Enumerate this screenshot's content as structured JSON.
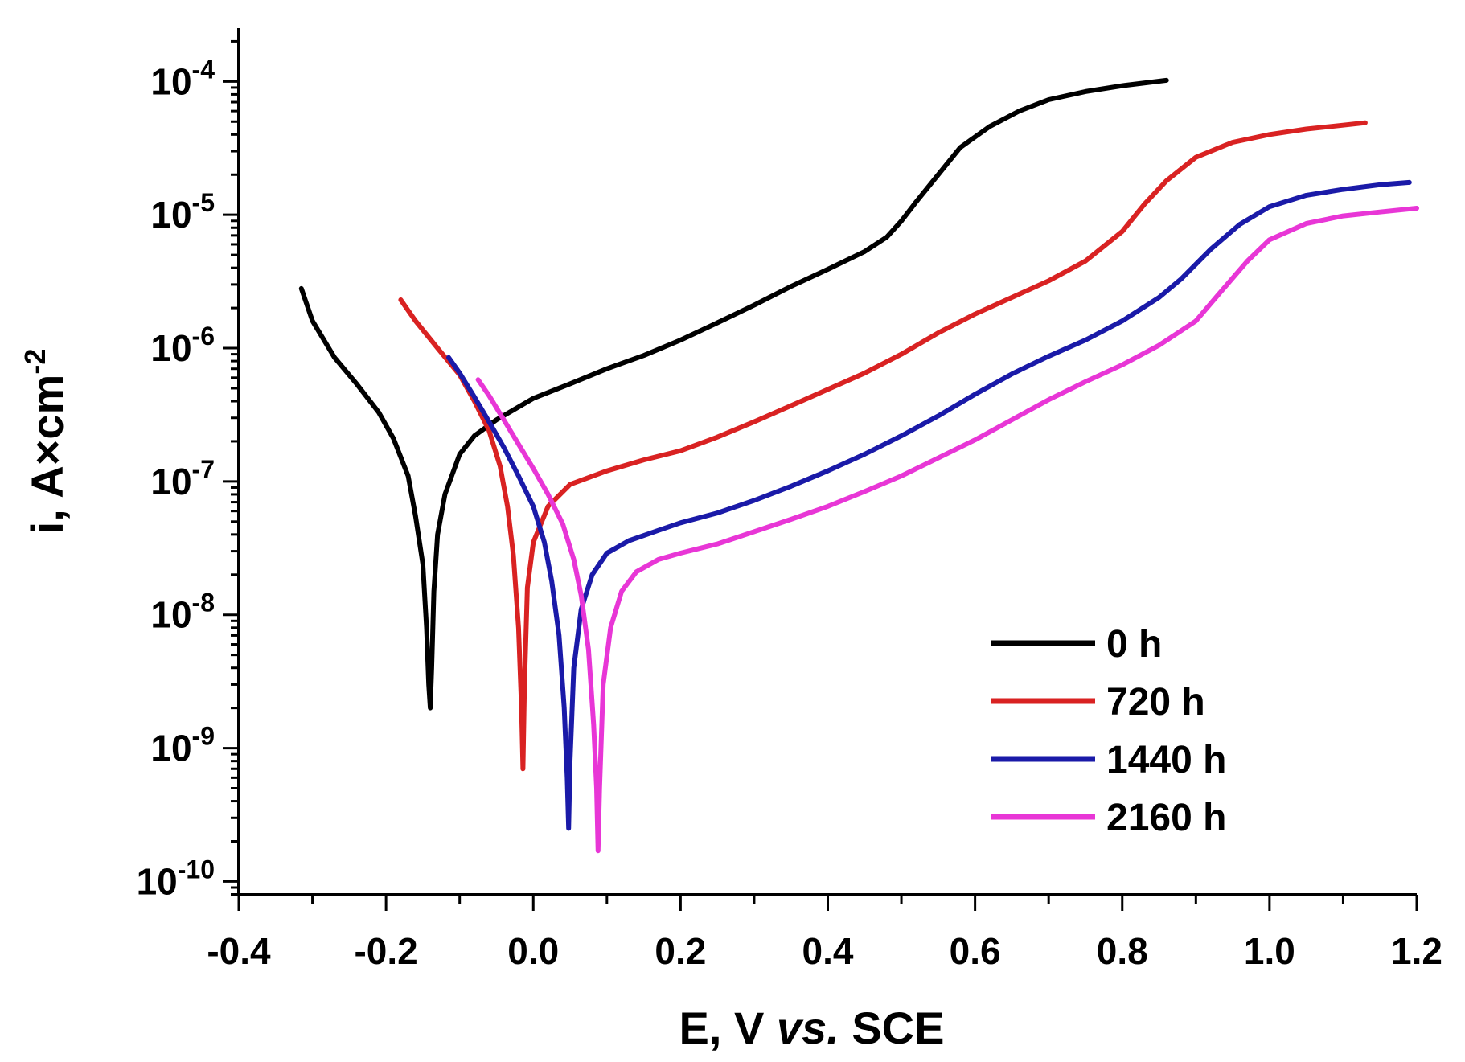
{
  "chart_data": {
    "type": "line",
    "title": "",
    "xlabel": {
      "pre": "E, V ",
      "italic": "vs.",
      "post": " SCE"
    },
    "ylabel": {
      "base": "i, A×cm",
      "sup": "-2"
    },
    "xlim": [
      -0.4,
      1.2
    ],
    "ylim_log10": [
      -10.1,
      -3.6
    ],
    "y_scale": "log",
    "x_ticks": [
      {
        "value": -0.4,
        "label": "-0.4"
      },
      {
        "value": -0.2,
        "label": "-0.2"
      },
      {
        "value": 0.0,
        "label": "0.0"
      },
      {
        "value": 0.2,
        "label": "0.2"
      },
      {
        "value": 0.4,
        "label": "0.4"
      },
      {
        "value": 0.6,
        "label": "0.6"
      },
      {
        "value": 0.8,
        "label": "0.8"
      },
      {
        "value": 1.0,
        "label": "1.0"
      },
      {
        "value": 1.2,
        "label": "1.2"
      }
    ],
    "y_ticks": [
      {
        "value": 0.0001,
        "base": "10",
        "exp": "-4"
      },
      {
        "value": 1e-05,
        "base": "10",
        "exp": "-5"
      },
      {
        "value": 1e-06,
        "base": "10",
        "exp": "-6"
      },
      {
        "value": 1e-07,
        "base": "10",
        "exp": "-7"
      },
      {
        "value": 1e-08,
        "base": "10",
        "exp": "-8"
      },
      {
        "value": 1e-09,
        "base": "10",
        "exp": "-9"
      },
      {
        "value": 1e-10,
        "base": "10",
        "exp": "-10"
      }
    ],
    "grid": false,
    "legend": "bottom-right",
    "series": [
      {
        "name": "0 h",
        "color": "#000000",
        "points": [
          [
            -0.315,
            2.8e-06
          ],
          [
            -0.3,
            1.6e-06
          ],
          [
            -0.27,
            8.5e-07
          ],
          [
            -0.24,
            5.4e-07
          ],
          [
            -0.21,
            3.3e-07
          ],
          [
            -0.19,
            2.1e-07
          ],
          [
            -0.17,
            1.1e-07
          ],
          [
            -0.16,
            5.5e-08
          ],
          [
            -0.15,
            2.4e-08
          ],
          [
            -0.145,
            8e-09
          ],
          [
            -0.142,
            3e-09
          ],
          [
            -0.14,
            2e-09
          ],
          [
            -0.138,
            4e-09
          ],
          [
            -0.135,
            1.5e-08
          ],
          [
            -0.13,
            4e-08
          ],
          [
            -0.12,
            8e-08
          ],
          [
            -0.1,
            1.6e-07
          ],
          [
            -0.08,
            2.2e-07
          ],
          [
            -0.05,
            2.9e-07
          ],
          [
            0.0,
            4.2e-07
          ],
          [
            0.05,
            5.4e-07
          ],
          [
            0.1,
            7e-07
          ],
          [
            0.15,
            8.8e-07
          ],
          [
            0.2,
            1.15e-06
          ],
          [
            0.25,
            1.55e-06
          ],
          [
            0.3,
            2.1e-06
          ],
          [
            0.35,
            2.9e-06
          ],
          [
            0.4,
            3.9e-06
          ],
          [
            0.45,
            5.3e-06
          ],
          [
            0.48,
            6.8e-06
          ],
          [
            0.5,
            9e-06
          ],
          [
            0.52,
            1.25e-05
          ],
          [
            0.55,
            2e-05
          ],
          [
            0.58,
            3.2e-05
          ],
          [
            0.62,
            4.6e-05
          ],
          [
            0.66,
            6e-05
          ],
          [
            0.7,
            7.3e-05
          ],
          [
            0.75,
            8.4e-05
          ],
          [
            0.8,
            9.3e-05
          ],
          [
            0.86,
            0.000102
          ]
        ]
      },
      {
        "name": "720 h",
        "color": "#d92222",
        "points": [
          [
            -0.18,
            2.3e-06
          ],
          [
            -0.16,
            1.6e-06
          ],
          [
            -0.13,
            1e-06
          ],
          [
            -0.1,
            6.3e-07
          ],
          [
            -0.08,
            4e-07
          ],
          [
            -0.06,
            2.4e-07
          ],
          [
            -0.045,
            1.3e-07
          ],
          [
            -0.035,
            6.5e-08
          ],
          [
            -0.027,
            2.8e-08
          ],
          [
            -0.02,
            8e-09
          ],
          [
            -0.016,
            2e-09
          ],
          [
            -0.014,
            7e-10
          ],
          [
            -0.012,
            3e-09
          ],
          [
            -0.008,
            1.6e-08
          ],
          [
            0.0,
            3.5e-08
          ],
          [
            0.02,
            6.5e-08
          ],
          [
            0.05,
            9.5e-08
          ],
          [
            0.1,
            1.2e-07
          ],
          [
            0.15,
            1.45e-07
          ],
          [
            0.2,
            1.7e-07
          ],
          [
            0.25,
            2.15e-07
          ],
          [
            0.3,
            2.8e-07
          ],
          [
            0.35,
            3.7e-07
          ],
          [
            0.4,
            4.9e-07
          ],
          [
            0.45,
            6.5e-07
          ],
          [
            0.5,
            9e-07
          ],
          [
            0.55,
            1.3e-06
          ],
          [
            0.6,
            1.8e-06
          ],
          [
            0.65,
            2.4e-06
          ],
          [
            0.7,
            3.2e-06
          ],
          [
            0.75,
            4.5e-06
          ],
          [
            0.8,
            7.5e-06
          ],
          [
            0.83,
            1.2e-05
          ],
          [
            0.86,
            1.8e-05
          ],
          [
            0.9,
            2.7e-05
          ],
          [
            0.95,
            3.5e-05
          ],
          [
            1.0,
            4e-05
          ],
          [
            1.05,
            4.4e-05
          ],
          [
            1.1,
            4.7e-05
          ],
          [
            1.13,
            4.9e-05
          ]
        ]
      },
      {
        "name": "1440 h",
        "color": "#1a1aa8",
        "points": [
          [
            -0.115,
            8.5e-07
          ],
          [
            -0.1,
            6.5e-07
          ],
          [
            -0.08,
            4.3e-07
          ],
          [
            -0.06,
            2.8e-07
          ],
          [
            -0.04,
            1.8e-07
          ],
          [
            -0.02,
            1.1e-07
          ],
          [
            0.0,
            6.5e-08
          ],
          [
            0.015,
            3.5e-08
          ],
          [
            0.025,
            1.8e-08
          ],
          [
            0.035,
            7e-09
          ],
          [
            0.042,
            2e-09
          ],
          [
            0.046,
            6e-10
          ],
          [
            0.048,
            2.5e-10
          ],
          [
            0.05,
            8e-10
          ],
          [
            0.055,
            4e-09
          ],
          [
            0.065,
            1.1e-08
          ],
          [
            0.08,
            2e-08
          ],
          [
            0.1,
            2.9e-08
          ],
          [
            0.13,
            3.6e-08
          ],
          [
            0.17,
            4.3e-08
          ],
          [
            0.2,
            4.9e-08
          ],
          [
            0.25,
            5.8e-08
          ],
          [
            0.3,
            7.2e-08
          ],
          [
            0.35,
            9.2e-08
          ],
          [
            0.4,
            1.2e-07
          ],
          [
            0.45,
            1.6e-07
          ],
          [
            0.5,
            2.2e-07
          ],
          [
            0.55,
            3.1e-07
          ],
          [
            0.6,
            4.5e-07
          ],
          [
            0.65,
            6.4e-07
          ],
          [
            0.7,
            8.7e-07
          ],
          [
            0.75,
            1.15e-06
          ],
          [
            0.8,
            1.6e-06
          ],
          [
            0.85,
            2.4e-06
          ],
          [
            0.88,
            3.3e-06
          ],
          [
            0.92,
            5.5e-06
          ],
          [
            0.96,
            8.5e-06
          ],
          [
            1.0,
            1.15e-05
          ],
          [
            1.05,
            1.4e-05
          ],
          [
            1.1,
            1.55e-05
          ],
          [
            1.15,
            1.68e-05
          ],
          [
            1.19,
            1.75e-05
          ]
        ]
      },
      {
        "name": "2160 h",
        "color": "#e836d6",
        "points": [
          [
            -0.075,
            5.8e-07
          ],
          [
            -0.06,
            4.4e-07
          ],
          [
            -0.04,
            2.9e-07
          ],
          [
            -0.02,
            1.9e-07
          ],
          [
            0.0,
            1.25e-07
          ],
          [
            0.02,
            8e-08
          ],
          [
            0.04,
            4.8e-08
          ],
          [
            0.055,
            2.6e-08
          ],
          [
            0.065,
            1.4e-08
          ],
          [
            0.075,
            5.5e-09
          ],
          [
            0.082,
            1.5e-09
          ],
          [
            0.086,
            5e-10
          ],
          [
            0.088,
            1.7e-10
          ],
          [
            0.09,
            5e-10
          ],
          [
            0.095,
            3e-09
          ],
          [
            0.105,
            8e-09
          ],
          [
            0.12,
            1.5e-08
          ],
          [
            0.14,
            2.1e-08
          ],
          [
            0.17,
            2.6e-08
          ],
          [
            0.2,
            2.9e-08
          ],
          [
            0.25,
            3.4e-08
          ],
          [
            0.3,
            4.2e-08
          ],
          [
            0.35,
            5.2e-08
          ],
          [
            0.4,
            6.5e-08
          ],
          [
            0.45,
            8.4e-08
          ],
          [
            0.5,
            1.1e-07
          ],
          [
            0.55,
            1.5e-07
          ],
          [
            0.6,
            2.05e-07
          ],
          [
            0.65,
            2.9e-07
          ],
          [
            0.7,
            4.1e-07
          ],
          [
            0.75,
            5.6e-07
          ],
          [
            0.8,
            7.5e-07
          ],
          [
            0.85,
            1.05e-06
          ],
          [
            0.9,
            1.6e-06
          ],
          [
            0.93,
            2.5e-06
          ],
          [
            0.97,
            4.5e-06
          ],
          [
            1.0,
            6.5e-06
          ],
          [
            1.05,
            8.6e-06
          ],
          [
            1.1,
            9.8e-06
          ],
          [
            1.15,
            1.05e-05
          ],
          [
            1.2,
            1.12e-05
          ]
        ]
      }
    ]
  }
}
